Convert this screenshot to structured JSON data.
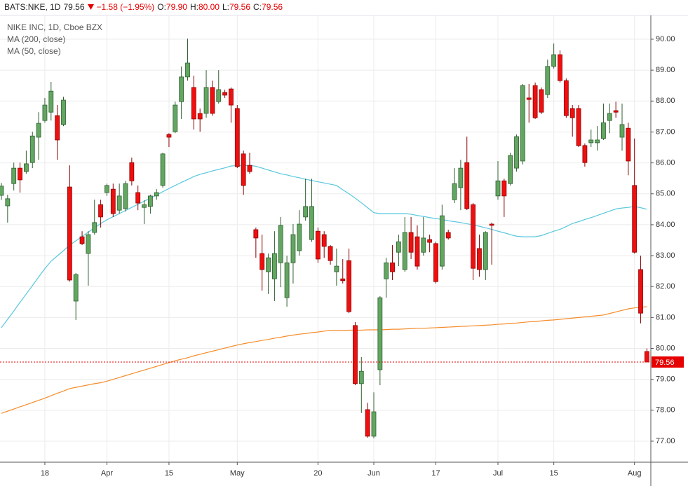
{
  "header": {
    "symbol": "BATS:NKE, 1D",
    "price": "79.56",
    "change": "−1.58 (−1.95%)",
    "ohlc": [
      {
        "label": "O:",
        "value": "79.90"
      },
      {
        "label": "H:",
        "value": "80.00"
      },
      {
        "label": "L:",
        "value": "79.56"
      },
      {
        "label": "C:",
        "value": "79.56"
      }
    ]
  },
  "chart_data": {
    "type": "candlestick",
    "title": "NIKE INC, 1D, Cboe BZX",
    "categories": [
      null,
      null,
      null,
      null,
      null,
      null,
      null,
      "18",
      null,
      null,
      null,
      null,
      null,
      null,
      null,
      null,
      null,
      "Apr",
      null,
      null,
      null,
      null,
      null,
      null,
      null,
      null,
      null,
      "15",
      null,
      null,
      null,
      null,
      null,
      null,
      null,
      null,
      null,
      null,
      "May",
      null,
      null,
      null,
      null,
      null,
      null,
      null,
      null,
      null,
      null,
      null,
      null,
      "20",
      null,
      null,
      null,
      null,
      null,
      null,
      null,
      null,
      "Jun",
      null,
      null,
      null,
      null,
      null,
      null,
      null,
      null,
      null,
      "17",
      null,
      null,
      null,
      null,
      null,
      null,
      null,
      null,
      null,
      "Jul",
      null,
      null,
      null,
      null,
      null,
      null,
      null,
      null,
      "15",
      null,
      null,
      null,
      null,
      null,
      null,
      null,
      null,
      null,
      null,
      null,
      null,
      "Aug",
      null,
      null
    ],
    "open": [
      84.95,
      84.61,
      85.33,
      85.83,
      85.72,
      86.01,
      86.83,
      87.37,
      87.64,
      87.53,
      87.24,
      85.22,
      81.53,
      83.61,
      83.07,
      83.75,
      84.65,
      85.04,
      85.15,
      84.47,
      84.52,
      86.01,
      85.04,
      84.56,
      84.59,
      84.93,
      85.27,
      86.92,
      87.01,
      87.98,
      88.78,
      88.44,
      87.6,
      87.6,
      88.44,
      87.98,
      88.28,
      88.39,
      87.76,
      86.29,
      85.92,
      83.84,
      83.07,
      82.48,
      82.25,
      82.77,
      81.64,
      82.77,
      83.16,
      84.25,
      83.52,
      83.79,
      83.68,
      83.3,
      82.48,
      82.25,
      82.84,
      80.74,
      78.86,
      78.02,
      77.16,
      79.31,
      82.25,
      82.77,
      83.11,
      82.55,
      83.75,
      83.61,
      83.11,
      83.52,
      83.39,
      82.66,
      83.75,
      84.81,
      85.2,
      86.01,
      84.65,
      83.23,
      82.55,
      84.02,
      84.93,
      85.42,
      85.33,
      85.83,
      86.06,
      88.1,
      88.5,
      88.37,
      88.21,
      89.12,
      89.5,
      88.66,
      87.76,
      87.76,
      86.56,
      86.65,
      86.65,
      86.79,
      87.37,
      87.69,
      86.83,
      87.12,
      85.27,
      82.55,
      79.9
    ],
    "high": [
      85.35,
      84.97,
      86.01,
      86.01,
      86.4,
      87.01,
      87.64,
      88.1,
      88.62,
      87.87,
      88.14,
      85.92,
      82.44,
      83.79,
      83.79,
      84.81,
      84.81,
      85.33,
      85.33,
      85.33,
      85.42,
      86.17,
      85.27,
      84.79,
      84.97,
      85.15,
      86.33,
      86.96,
      87.98,
      89.12,
      90.02,
      88.82,
      87.76,
      89.0,
      88.66,
      89.0,
      88.37,
      88.44,
      87.87,
      86.4,
      86.33,
      83.91,
      83.68,
      83.07,
      83.79,
      84.25,
      83.0,
      84.02,
      84.47,
      85.49,
      85.49,
      83.91,
      83.79,
      83.34,
      83.23,
      82.89,
      83.23,
      80.85,
      79.72,
      78.24,
      78.58,
      81.69,
      82.93,
      83.34,
      83.68,
      84.25,
      84.25,
      83.98,
      84.25,
      83.68,
      83.45,
      84.65,
      83.84,
      85.83,
      86.1,
      86.85,
      84.7,
      83.68,
      83.79,
      84.07,
      86.06,
      85.49,
      86.33,
      86.92,
      88.55,
      88.55,
      88.6,
      88.44,
      89.34,
      89.86,
      89.64,
      88.73,
      87.87,
      87.87,
      86.63,
      87.08,
      87.19,
      87.92,
      87.92,
      87.98,
      87.92,
      87.3,
      86.79,
      83.0,
      80.0
    ],
    "low": [
      84.8,
      84.07,
      85.11,
      85.04,
      85.65,
      85.83,
      86.1,
      87.3,
      87.37,
      86.1,
      87.19,
      82.16,
      80.92,
      83.34,
      82.03,
      83.68,
      83.91,
      84.93,
      84.25,
      84.36,
      84.43,
      85.27,
      84.47,
      84.02,
      84.36,
      84.81,
      85.2,
      86.51,
      86.96,
      87.42,
      88.66,
      87.08,
      87.01,
      87.46,
      87.53,
      87.92,
      88.1,
      87.3,
      85.83,
      84.97,
      85.65,
      82.93,
      81.87,
      81.76,
      81.53,
      81.98,
      81.35,
      82.1,
      83.0,
      84.13,
      83.45,
      82.77,
      82.93,
      82.71,
      82.03,
      82.1,
      81.14,
      78.81,
      77.91,
      77.11,
      77.09,
      78.81,
      81.64,
      82.21,
      82.66,
      82.48,
      82.89,
      82.55,
      83.0,
      83.11,
      82.1,
      82.55,
      83.52,
      84.7,
      84.47,
      84.47,
      82.21,
      82.32,
      82.21,
      82.71,
      84.81,
      84.25,
      85.27,
      85.72,
      85.95,
      87.3,
      87.42,
      87.58,
      88.1,
      89.05,
      88.6,
      87.46,
      86.85,
      86.51,
      85.88,
      86.51,
      86.4,
      86.74,
      86.96,
      87.46,
      86.4,
      85.6,
      83.07,
      80.81,
      79.56
    ],
    "close": [
      85.25,
      84.84,
      85.83,
      85.45,
      85.97,
      86.87,
      87.28,
      87.87,
      88.32,
      86.74,
      88.03,
      82.21,
      82.39,
      83.39,
      83.68,
      84.07,
      84.25,
      85.27,
      84.36,
      84.93,
      85.33,
      85.42,
      84.7,
      84.65,
      84.93,
      85.04,
      86.29,
      86.83,
      87.87,
      88.78,
      89.23,
      87.42,
      87.42,
      88.44,
      87.6,
      88.37,
      88.19,
      87.87,
      85.88,
      85.27,
      85.72,
      83.57,
      82.55,
      82.93,
      83.07,
      83.98,
      82.77,
      83.68,
      84.02,
      84.59,
      84.59,
      82.89,
      83.3,
      82.84,
      82.66,
      82.19,
      81.19,
      78.86,
      79.26,
      77.16,
      77.95,
      81.64,
      82.77,
      82.48,
      83.45,
      83.75,
      83.11,
      82.66,
      83.57,
      83.43,
      82.16,
      84.29,
      83.57,
      85.33,
      85.83,
      84.52,
      82.59,
      82.55,
      83.75,
      83.98,
      85.42,
      84.93,
      86.24,
      86.85,
      88.5,
      88.05,
      87.46,
      87.64,
      89.12,
      89.5,
      88.66,
      87.53,
      87.46,
      86.56,
      86.01,
      86.74,
      86.74,
      87.3,
      87.6,
      87.64,
      87.24,
      86.06,
      83.11,
      81.14,
      79.56
    ],
    "series": [
      {
        "name": "MA (200, close)",
        "color": "#f58c2a",
        "values": [
          77.9,
          77.97,
          78.04,
          78.11,
          78.18,
          78.25,
          78.32,
          78.39,
          78.47,
          78.55,
          78.62,
          78.7,
          78.74,
          78.78,
          78.82,
          78.86,
          78.89,
          78.94,
          79.0,
          79.06,
          79.12,
          79.18,
          79.24,
          79.3,
          79.36,
          79.42,
          79.48,
          79.54,
          79.6,
          79.65,
          79.7,
          79.76,
          79.81,
          79.86,
          79.91,
          79.96,
          80.01,
          80.06,
          80.11,
          80.15,
          80.19,
          80.22,
          80.26,
          80.29,
          80.33,
          80.36,
          80.4,
          80.43,
          80.46,
          80.48,
          80.51,
          80.53,
          80.56,
          80.58,
          80.58,
          80.58,
          80.59,
          80.59,
          80.59,
          80.6,
          80.6,
          80.6,
          80.61,
          80.62,
          80.62,
          80.63,
          80.64,
          80.65,
          80.65,
          80.66,
          80.67,
          80.68,
          80.69,
          80.7,
          80.71,
          80.72,
          80.73,
          80.74,
          80.75,
          80.76,
          80.78,
          80.79,
          80.81,
          80.82,
          80.84,
          80.86,
          80.87,
          80.89,
          80.91,
          80.92,
          80.94,
          80.96,
          80.98,
          81.0,
          81.02,
          81.04,
          81.06,
          81.08,
          81.13,
          81.18,
          81.23,
          81.28,
          81.31,
          81.33,
          81.35
        ]
      },
      {
        "name": "MA (50, close)",
        "color": "#58c7dd",
        "values": [
          80.67,
          80.94,
          81.21,
          81.49,
          81.76,
          82.03,
          82.31,
          82.58,
          82.82,
          82.99,
          83.16,
          83.34,
          83.48,
          83.62,
          83.76,
          83.9,
          84.04,
          84.16,
          84.26,
          84.36,
          84.46,
          84.56,
          84.66,
          84.76,
          84.86,
          84.96,
          85.07,
          85.17,
          85.27,
          85.37,
          85.46,
          85.56,
          85.63,
          85.68,
          85.74,
          85.79,
          85.84,
          85.9,
          85.91,
          85.91,
          85.92,
          85.89,
          85.83,
          85.77,
          85.71,
          85.65,
          85.61,
          85.56,
          85.52,
          85.47,
          85.43,
          85.39,
          85.35,
          85.31,
          85.27,
          85.13,
          85.0,
          84.86,
          84.71,
          84.55,
          84.39,
          84.36,
          84.36,
          84.36,
          84.36,
          84.36,
          84.34,
          84.3,
          84.27,
          84.23,
          84.2,
          84.17,
          84.13,
          84.1,
          84.07,
          84.03,
          84.0,
          83.95,
          83.9,
          83.85,
          83.79,
          83.74,
          83.68,
          83.63,
          83.61,
          83.61,
          83.61,
          83.65,
          83.72,
          83.79,
          83.85,
          83.94,
          84.04,
          84.1,
          84.17,
          84.23,
          84.3,
          84.37,
          84.44,
          84.51,
          84.54,
          84.56,
          84.59,
          84.55,
          84.5
        ]
      }
    ],
    "up_color": "#62a662",
    "down_color": "#f00f0f",
    "last_price": 79.56,
    "last_price_color": "#e60000",
    "ylim": [
      76.32,
      90.77
    ],
    "yticks": [
      {
        "value": 77,
        "label": "77.00"
      },
      {
        "value": 78,
        "label": "78.00"
      },
      {
        "value": 79,
        "label": "79.00"
      },
      {
        "value": 80,
        "label": "80.00"
      },
      {
        "value": 81,
        "label": "81.00"
      },
      {
        "value": 82,
        "label": "82.00"
      },
      {
        "value": 83,
        "label": "83.00"
      },
      {
        "value": 84,
        "label": "84.00"
      },
      {
        "value": 85,
        "label": "85.00"
      },
      {
        "value": 86,
        "label": "86.00"
      },
      {
        "value": 87,
        "label": "87.00"
      },
      {
        "value": 88,
        "label": "88.00"
      },
      {
        "value": 89,
        "label": "89.00"
      },
      {
        "value": 90,
        "label": "90.00"
      }
    ],
    "grid": true
  }
}
